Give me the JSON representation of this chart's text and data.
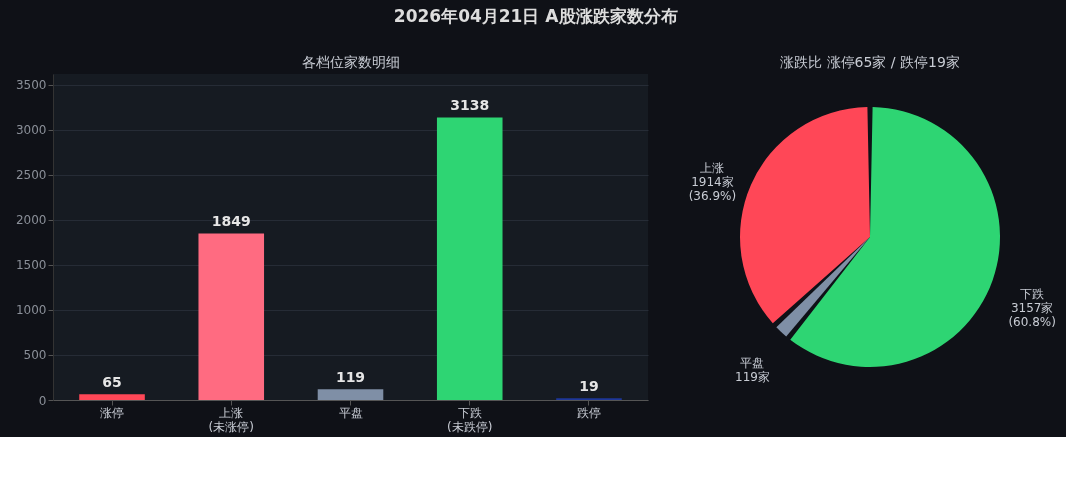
{
  "chart_data": [
    {
      "type": "bar",
      "title": "2026年04月21日  A股涨跌家数分布",
      "subtitle": "各档位家数明细",
      "categories": [
        "涨停",
        "上涨\n(未涨停)",
        "平盘",
        "下跌\n(未跌停)",
        "跌停"
      ],
      "values": [
        65,
        1849,
        119,
        3138,
        19
      ],
      "colors": [
        "#ff4757",
        "#ff6b81",
        "#7f8fa6",
        "#2ed573",
        "#1e3799"
      ],
      "ylim": [
        0,
        3620
      ],
      "yticks": [
        0,
        500,
        1000,
        1500,
        2000,
        2500,
        3000,
        3500
      ],
      "grid": "y",
      "data_labels": true
    },
    {
      "type": "pie",
      "subtitle": "涨跌比  涨停65家 / 跌停19家",
      "categories": [
        "上涨",
        "平盘",
        "下跌"
      ],
      "values": [
        1914,
        119,
        3157
      ],
      "colors": [
        "#ff4757",
        "#7f8fa6",
        "#2ed573"
      ],
      "value_labels": [
        "1914家\n(36.9%)",
        "119家",
        "3157家\n(60.8%)"
      ]
    }
  ]
}
